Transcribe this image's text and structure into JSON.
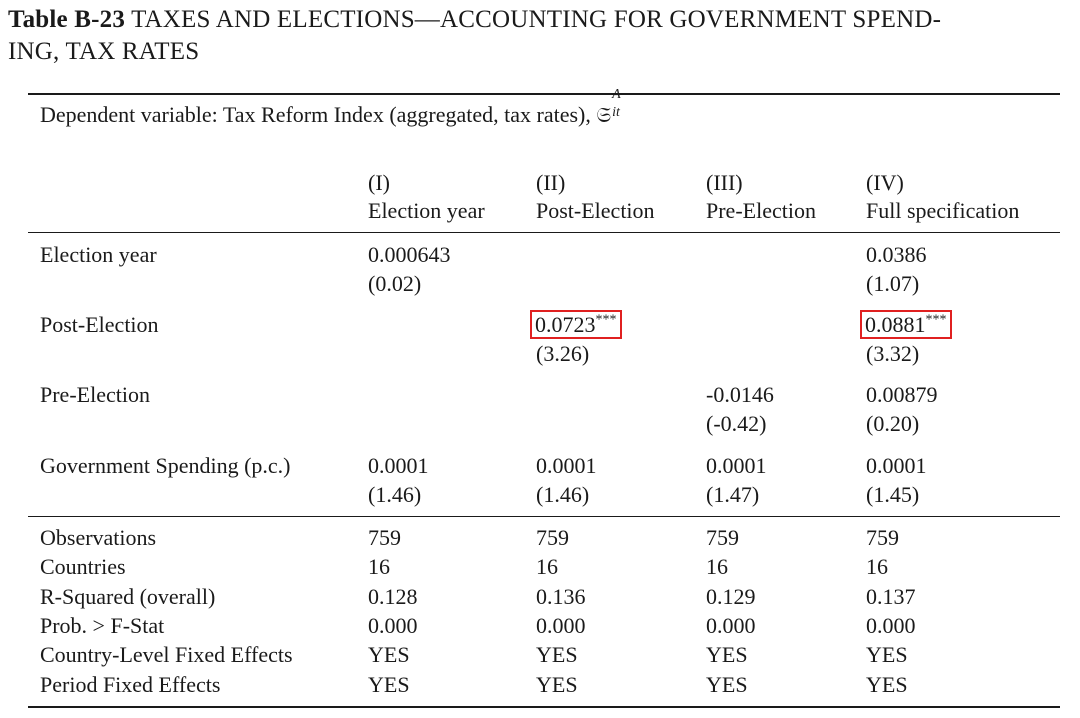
{
  "caption": {
    "label": "Table B-23",
    "line1": "TAXES AND ELECTIONS—ACCOUNTING FOR GOVERNMENT SPEND-",
    "line2": "ING, TAX RATES"
  },
  "dependent_variable": {
    "text": "Dependent variable: Tax Reform Index (aggregated, tax rates),",
    "symbol": "𝔖",
    "superscript": "A",
    "subscript": "it"
  },
  "columns": [
    {
      "numeral": "(I)",
      "name": "Election year"
    },
    {
      "numeral": "(II)",
      "name": "Post-Election"
    },
    {
      "numeral": "(III)",
      "name": "Pre-Election"
    },
    {
      "numeral": "(IV)",
      "name": "Full specification"
    }
  ],
  "coef_rows": [
    {
      "label": "Election year",
      "cells": [
        {
          "coef": "0.000643",
          "stars": "",
          "t": "(0.02)",
          "highlight": false
        },
        {
          "coef": "",
          "stars": "",
          "t": "",
          "highlight": false
        },
        {
          "coef": "",
          "stars": "",
          "t": "",
          "highlight": false
        },
        {
          "coef": "0.0386",
          "stars": "",
          "t": "(1.07)",
          "highlight": false
        }
      ]
    },
    {
      "label": "Post-Election",
      "cells": [
        {
          "coef": "",
          "stars": "",
          "t": "",
          "highlight": false
        },
        {
          "coef": "0.0723",
          "stars": "***",
          "t": "(3.26)",
          "highlight": true
        },
        {
          "coef": "",
          "stars": "",
          "t": "",
          "highlight": false
        },
        {
          "coef": "0.0881",
          "stars": "***",
          "t": "(3.32)",
          "highlight": true
        }
      ]
    },
    {
      "label": "Pre-Election",
      "cells": [
        {
          "coef": "",
          "stars": "",
          "t": "",
          "highlight": false
        },
        {
          "coef": "",
          "stars": "",
          "t": "",
          "highlight": false
        },
        {
          "coef": "-0.0146",
          "stars": "",
          "t": "(-0.42)",
          "highlight": false
        },
        {
          "coef": "0.00879",
          "stars": "",
          "t": "(0.20)",
          "highlight": false
        }
      ]
    },
    {
      "label": "Government Spending (p.c.)",
      "cells": [
        {
          "coef": "0.0001",
          "stars": "",
          "t": "(1.46)",
          "highlight": false
        },
        {
          "coef": "0.0001",
          "stars": "",
          "t": "(1.46)",
          "highlight": false
        },
        {
          "coef": "0.0001",
          "stars": "",
          "t": "(1.47)",
          "highlight": false
        },
        {
          "coef": "0.0001",
          "stars": "",
          "t": "(1.45)",
          "highlight": false
        }
      ]
    }
  ],
  "stat_rows": [
    {
      "label": "Observations",
      "values": [
        "759",
        "759",
        "759",
        "759"
      ]
    },
    {
      "label": "Countries",
      "values": [
        "16",
        "16",
        "16",
        "16"
      ]
    },
    {
      "label": "R-Squared (overall)",
      "values": [
        "0.128",
        "0.136",
        "0.129",
        "0.137"
      ]
    },
    {
      "label": "Prob. > F-Stat",
      "values": [
        "0.000",
        "0.000",
        "0.000",
        "0.000"
      ]
    },
    {
      "label": "Country-Level Fixed Effects",
      "values": [
        "YES",
        "YES",
        "YES",
        "YES"
      ]
    },
    {
      "label": "Period Fixed Effects",
      "values": [
        "YES",
        "YES",
        "YES",
        "YES"
      ]
    }
  ],
  "colors": {
    "highlight": "#e02020",
    "text": "#1a1a1a"
  }
}
